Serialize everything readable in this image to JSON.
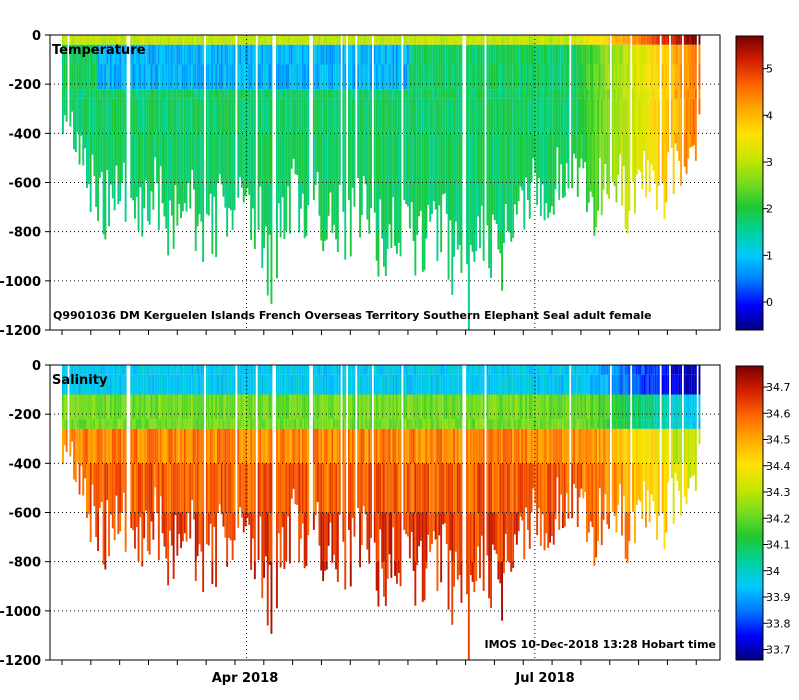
{
  "chart_data": [
    {
      "type": "heatmap",
      "title": "Temperature",
      "annotation": "Q9901036 DM Kerguelen Islands French Overseas Territory Southern Elephant Seal adult female",
      "ylabel": "",
      "ylim": [
        -1200,
        0
      ],
      "yticks": [
        0,
        -200,
        -400,
        -600,
        -800,
        -1000,
        -1200
      ],
      "ytick_labels": [
        "0",
        "-200",
        "-400",
        "-600",
        "-800",
        "-1000",
        "-1200"
      ],
      "grid": "dotted",
      "colorbar": {
        "range": [
          -0.6,
          5.7
        ],
        "ticks": [
          0,
          1,
          2,
          3,
          4,
          5
        ],
        "tick_labels": [
          "0",
          "1",
          "2",
          "3",
          "4",
          "5"
        ]
      },
      "profile_max_depth_m": [
        [
          0,
          380
        ],
        [
          10,
          450
        ],
        [
          20,
          640
        ],
        [
          30,
          730
        ],
        [
          40,
          780
        ],
        [
          50,
          720
        ],
        [
          60,
          790
        ],
        [
          70,
          760
        ],
        [
          80,
          700
        ],
        [
          90,
          820
        ],
        [
          100,
          800
        ],
        [
          110,
          700
        ],
        [
          120,
          920
        ],
        [
          130,
          840
        ],
        [
          140,
          780
        ],
        [
          150,
          760
        ],
        [
          160,
          820
        ],
        [
          170,
          780
        ],
        [
          178,
          1090
        ],
        [
          190,
          800
        ],
        [
          200,
          720
        ],
        [
          210,
          850
        ],
        [
          220,
          780
        ],
        [
          230,
          900
        ],
        [
          240,
          860
        ],
        [
          250,
          820
        ],
        [
          260,
          780
        ],
        [
          270,
          920
        ],
        [
          280,
          900
        ],
        [
          290,
          880
        ],
        [
          300,
          920
        ],
        [
          310,
          880
        ],
        [
          320,
          940
        ],
        [
          330,
          900
        ],
        [
          340,
          1000
        ],
        [
          350,
          1150
        ],
        [
          360,
          1000
        ],
        [
          370,
          900
        ],
        [
          380,
          980
        ],
        [
          390,
          950
        ],
        [
          400,
          760
        ],
        [
          410,
          700
        ],
        [
          420,
          700
        ],
        [
          430,
          640
        ],
        [
          440,
          620
        ],
        [
          450,
          700
        ],
        [
          460,
          760
        ],
        [
          470,
          680
        ],
        [
          480,
          650
        ],
        [
          490,
          780
        ],
        [
          500,
          600
        ],
        [
          510,
          620
        ],
        [
          520,
          700
        ],
        [
          530,
          620
        ],
        [
          540,
          600
        ],
        [
          550,
          500
        ],
        [
          555,
          400
        ]
      ]
    },
    {
      "type": "heatmap",
      "title": "Salinity",
      "annotation": "IMOS 10-Dec-2018 13:28 Hobart time",
      "ylabel": "",
      "ylim": [
        -1200,
        0
      ],
      "yticks": [
        0,
        -200,
        -400,
        -600,
        -800,
        -1000,
        -1200
      ],
      "ytick_labels": [
        "0",
        "-200",
        "-400",
        "-600",
        "-800",
        "-1000",
        "-1200"
      ],
      "grid": "dotted",
      "colorbar": {
        "range": [
          33.66,
          34.78
        ],
        "ticks": [
          33.7,
          33.8,
          33.9,
          34,
          34.1,
          34.2,
          34.3,
          34.4,
          34.5,
          34.6,
          34.7
        ],
        "tick_labels": [
          "33.7",
          "33.8",
          "33.9",
          "34",
          "34.1",
          "34.2",
          "34.3",
          "34.4",
          "34.5",
          "34.6",
          "34.7"
        ]
      },
      "profile_max_depth_m": "same as Temperature"
    }
  ],
  "x_axis": {
    "labels": [
      "Apr 2018",
      "Jul 2018"
    ],
    "days_from_start": [
      0,
      555
    ],
    "label_days": [
      160,
      410
    ]
  },
  "colors": {
    "temperature_scale": [
      "#00007a",
      "#0000ff",
      "#0078ff",
      "#00c8ff",
      "#00d2a0",
      "#1ec832",
      "#78dc1e",
      "#c8e600",
      "#ffe100",
      "#ffaa00",
      "#ff6400",
      "#d21e00",
      "#780000"
    ],
    "salinity_scale": [
      "#00007a",
      "#0000ff",
      "#0078ff",
      "#00c8ff",
      "#00d2a0",
      "#1ec832",
      "#78dc1e",
      "#c8e600",
      "#ffe100",
      "#ffaa00",
      "#ff6400",
      "#d21e00",
      "#780000"
    ]
  }
}
